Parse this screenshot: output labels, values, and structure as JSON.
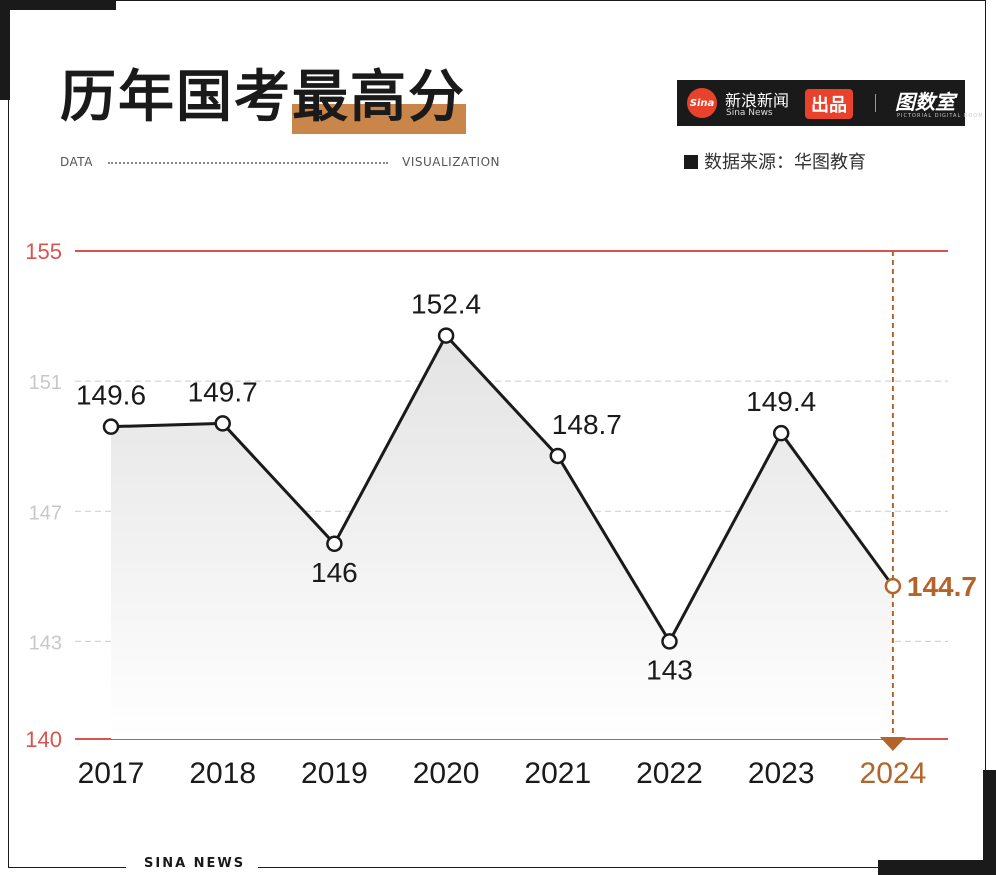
{
  "header": {
    "title_plain": "历年国考",
    "title_highlight": "最高分",
    "tag_left": "DATA",
    "tag_right": "VISUALIZATION",
    "accent_color": "#c9854a"
  },
  "brand": {
    "logo": "Sina",
    "name": "新浪新闻",
    "name_en": "Sina News",
    "produced": "出品",
    "room": "图数室",
    "room_en": "PICTORIAL DIGITAL ROOM"
  },
  "source": "数据来源：华图教育",
  "footer": "SINA NEWS",
  "chart_data": {
    "type": "line",
    "title": "历年国考最高分",
    "categories": [
      "2017",
      "2018",
      "2019",
      "2020",
      "2021",
      "2022",
      "2023",
      "2024"
    ],
    "values": [
      149.6,
      149.7,
      146,
      152.4,
      148.7,
      143,
      149.4,
      144.7
    ],
    "value_labels": [
      "149.6",
      "149.7",
      "146",
      "152.4",
      "148.7",
      "143",
      "149.4",
      "144.7"
    ],
    "y_ticks": [
      "140",
      "143",
      "147",
      "151",
      "155"
    ],
    "y_tick_values": [
      140,
      143,
      147,
      151,
      155
    ],
    "ylim": [
      140,
      155
    ],
    "highlight_index": 7,
    "line_color": "#1a1a1a",
    "bound_line_color": "#d9534f",
    "highlight_color": "#b3642a",
    "grid": true
  }
}
